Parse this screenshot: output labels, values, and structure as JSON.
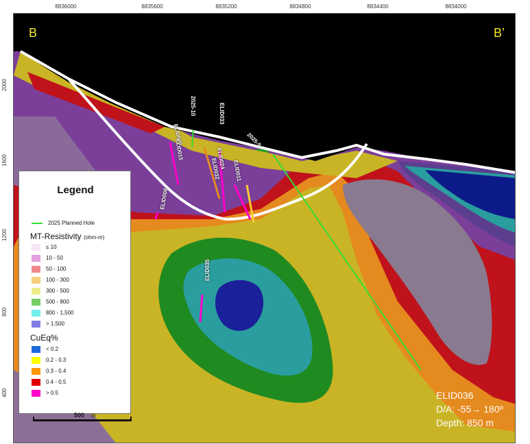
{
  "easting_ticks": [
    "8836000",
    "8835600",
    "8835200",
    "8834800",
    "8834400",
    "8834000"
  ],
  "elevation_ticks": [
    "2000",
    "1600",
    "1200",
    "800",
    "400"
  ],
  "section": {
    "start_label": "B",
    "end_label": "B’"
  },
  "drill_holes": [
    {
      "id": "ELID020",
      "label": "ELID020"
    },
    {
      "id": "2025-10",
      "label": "2025-10"
    },
    {
      "id": "ELID033",
      "label": "ELID033"
    },
    {
      "id": "2025-9",
      "label": "2025-9"
    },
    {
      "id": "ELID015",
      "label": "ELID015"
    },
    {
      "id": "ELID024",
      "label": "ELID024"
    },
    {
      "id": "ELID032",
      "label": "ELID032"
    },
    {
      "id": "ELID011",
      "label": "ELID011"
    },
    {
      "id": "ELID008",
      "label": "ELID008"
    },
    {
      "id": "ELID035",
      "label": "ELID035"
    }
  ],
  "legend": {
    "title": "Legend",
    "planned_hole": {
      "label": "2025 Planned Hole",
      "color": "#33dd33"
    },
    "resistivity_title": "MT-Resistivity",
    "resistivity_unit": "(ohm-m)",
    "resistivity": [
      {
        "label": "≤ 10",
        "color": "#f7e6f7"
      },
      {
        "label": "10 - 50",
        "color": "#e2a0dd"
      },
      {
        "label": "50 - 100",
        "color": "#f08a8a"
      },
      {
        "label": "100 - 300",
        "color": "#f7cf7e"
      },
      {
        "label": "300 - 500",
        "color": "#eeee88"
      },
      {
        "label": "500 - 800",
        "color": "#77cc66"
      },
      {
        "label": "800 - 1,500",
        "color": "#77eeee"
      },
      {
        "label": "> 1,500",
        "color": "#7f7fe6"
      }
    ],
    "cueq_title": "CuEq%",
    "cueq": [
      {
        "label": "< 0.2",
        "color": "#1c6bdc"
      },
      {
        "label": "0.2 - 0.3",
        "color": "#ffff00"
      },
      {
        "label": "0.3 - 0.4",
        "color": "#ff9900"
      },
      {
        "label": "0.4 - 0.5",
        "color": "#e00000"
      },
      {
        "label": "> 0.5",
        "color": "#ff00cc"
      }
    ]
  },
  "scale": {
    "value": "500",
    "unit": "m"
  },
  "annotation": {
    "hole": "ELID036",
    "dip_azimuth": "D/A: -55→ 180º",
    "depth": "Depth: 850 m"
  },
  "colors": {
    "sky": "#000000",
    "pit_shell": "#ffffff",
    "corner_labels": "#f2ea2a"
  }
}
